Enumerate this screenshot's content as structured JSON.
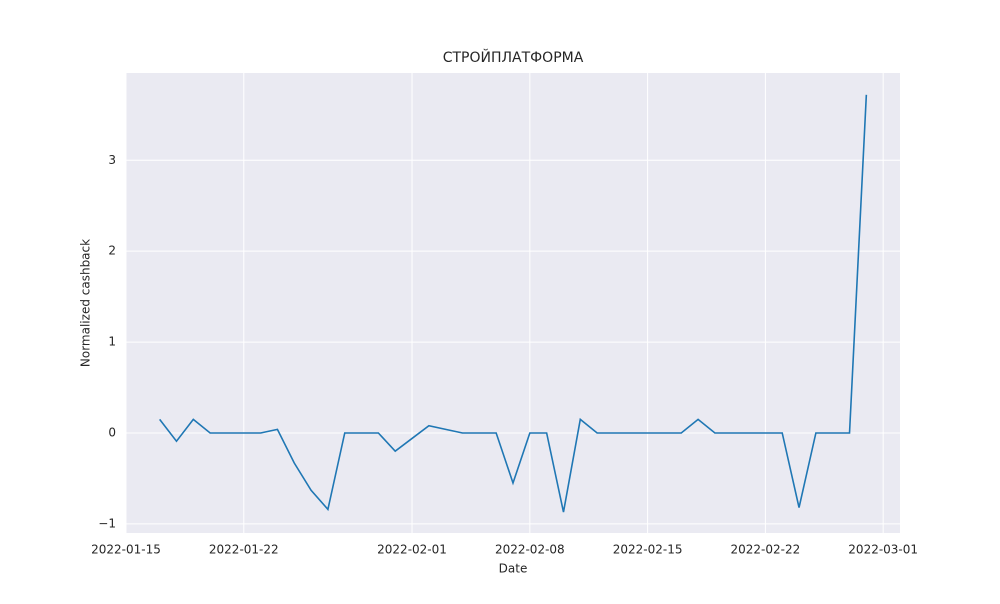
{
  "chart_data": {
    "type": "line",
    "title": "СТРОЙПЛАТФОРМА",
    "xlabel": "Date",
    "ylabel": "Normalized cashback",
    "x": [
      "2022-01-17",
      "2022-01-18",
      "2022-01-19",
      "2022-01-20",
      "2022-01-21",
      "2022-01-22",
      "2022-01-23",
      "2022-01-24",
      "2022-01-25",
      "2022-01-26",
      "2022-01-27",
      "2022-01-28",
      "2022-01-29",
      "2022-01-30",
      "2022-01-31",
      "2022-02-01",
      "2022-02-02",
      "2022-02-03",
      "2022-02-04",
      "2022-02-05",
      "2022-02-06",
      "2022-02-07",
      "2022-02-08",
      "2022-02-09",
      "2022-02-10",
      "2022-02-11",
      "2022-02-12",
      "2022-02-13",
      "2022-02-14",
      "2022-02-15",
      "2022-02-16",
      "2022-02-17",
      "2022-02-18",
      "2022-02-19",
      "2022-02-20",
      "2022-02-21",
      "2022-02-22",
      "2022-02-23",
      "2022-02-24",
      "2022-02-25",
      "2022-02-26",
      "2022-02-27",
      "2022-02-28"
    ],
    "series": [
      {
        "name": "cashback",
        "color": "#1f77b4",
        "values": [
          0.15,
          -0.09,
          0.15,
          0,
          0,
          0,
          0,
          0.04,
          -0.33,
          -0.63,
          -0.84,
          0,
          0,
          0,
          -0.2,
          -0.06,
          0.08,
          0.04,
          0,
          0,
          0,
          -0.55,
          0,
          0,
          -0.87,
          0.15,
          0,
          0,
          0,
          0,
          0,
          0,
          0.15,
          0,
          0,
          0,
          0,
          0,
          -0.82,
          0,
          0,
          0,
          3.72
        ]
      }
    ],
    "xlim": [
      "2022-01-15",
      "2022-03-02"
    ],
    "xticks": [
      "2022-01-15",
      "2022-01-22",
      "2022-02-01",
      "2022-02-08",
      "2022-02-15",
      "2022-02-22",
      "2022-03-01"
    ],
    "ylim": [
      -1.1,
      3.96
    ],
    "yticks": [
      {
        "value": -1,
        "label": "−1"
      },
      0,
      1,
      2,
      3
    ],
    "grid": true
  }
}
